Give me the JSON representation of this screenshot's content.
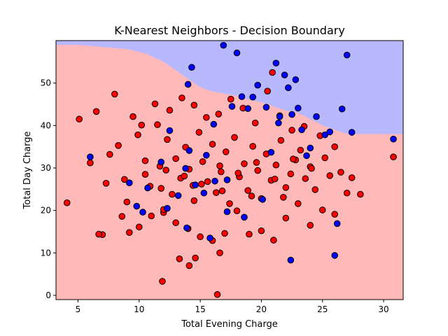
{
  "chart_data": {
    "type": "scatter",
    "title": "K-Nearest Neighbors - Decision Boundary",
    "xlabel": "Total Evening Charge",
    "ylabel": "Total Day Charge",
    "xlim": [
      3.2,
      31.6
    ],
    "ylim": [
      -1,
      60
    ],
    "xticks": [
      5,
      10,
      15,
      20,
      25,
      30
    ],
    "yticks": [
      0,
      10,
      20,
      30,
      40,
      50
    ],
    "grid": false,
    "legend": "none",
    "regions": {
      "class_0_color": "#ffb9b9",
      "class_1_color": "#b8b8ff",
      "boundary_x": [
        3.2,
        5,
        7,
        9,
        10.5,
        12,
        13,
        14,
        15,
        16,
        17,
        18,
        19,
        20,
        21,
        22,
        23,
        24,
        25,
        26,
        27,
        28,
        29,
        30,
        31.6
      ],
      "boundary_y": [
        59,
        59,
        58.5,
        58,
        57,
        55,
        53,
        51,
        49,
        48,
        47.5,
        47,
        46,
        45.5,
        44.5,
        43.5,
        43,
        41.5,
        40,
        39,
        38,
        38,
        38,
        38,
        38
      ]
    },
    "series": [
      {
        "color": "#ff0000",
        "x": [
          4.1,
          5.1,
          6.5,
          7.0,
          7.3,
          7.6,
          8.0,
          8.3,
          8.8,
          9.2,
          9.5,
          9.9,
          10.2,
          10.5,
          10.9,
          11.3,
          11.7,
          12.0,
          12.3,
          12.7,
          13.0,
          13.4,
          13.8,
          14.1,
          14.5,
          14.9,
          15.2,
          15.6,
          16.0,
          16.3,
          16.7,
          17.1,
          17.4,
          17.8,
          18.2,
          18.6,
          18.9,
          19.3,
          19.7,
          20.0,
          20.4,
          20.8,
          21.2,
          21.6,
          22.0,
          22.4,
          22.8,
          23.2,
          23.6,
          24.0,
          24.4,
          24.8,
          25.2,
          25.6,
          26.0,
          26.5,
          27.0,
          27.4,
          28.1,
          30.8,
          6.0,
          6.7,
          8.6,
          9.0,
          10.0,
          11.0,
          12.0,
          13.0,
          14.0,
          15.0,
          16.0,
          17.0,
          18.0,
          19.0,
          20.0,
          21.0,
          22.0,
          23.0,
          24.0,
          25.0,
          26.0,
          11.5,
          12.5,
          13.5,
          14.5,
          15.5,
          16.5,
          17.5,
          18.5,
          19.5,
          20.5,
          21.5,
          22.5,
          23.5,
          10.5,
          12.2,
          13.7,
          15.1,
          16.6,
          18.1,
          19.6,
          21.1,
          22.6,
          24.1,
          11.8,
          14.4,
          16.8,
          19.2,
          21.8,
          11.9,
          16.4,
          13.3,
          14.6,
          14.1,
          20.9,
          16.6
        ],
        "y": [
          21.8,
          41.5,
          43.3,
          14.3,
          26.4,
          33.2,
          47.4,
          35.3,
          27.3,
          14.8,
          42.1,
          37.8,
          40.1,
          28.5,
          25.7,
          45.1,
          30.4,
          19.5,
          36.7,
          23.8,
          32.2,
          27.6,
          34.9,
          29.7,
          22.3,
          38.4,
          31.5,
          26.8,
          35.6,
          24.2,
          29.1,
          33.8,
          21.6,
          37.2,
          27.9,
          31.0,
          24.7,
          35.1,
          29.4,
          22.8,
          33.3,
          27.1,
          30.7,
          36.5,
          25.4,
          28.6,
          31.9,
          34.2,
          27.5,
          30.3,
          24.9,
          37.6,
          32.4,
          28.2,
          35.0,
          29.0,
          24.1,
          27.7,
          23.8,
          32.6,
          31.2,
          14.4,
          18.6,
          22.0,
          16.1,
          18.7,
          20.2,
          17.1,
          15.7,
          13.8,
          12.9,
          14.6,
          19.9,
          14.4,
          15.2,
          13.0,
          18.2,
          21.6,
          16.5,
          20.1,
          19.1,
          40.2,
          43.6,
          46.5,
          44.8,
          41.9,
          42.7,
          46.2,
          44.1,
          40.6,
          48.1,
          42.3,
          38.9,
          39.8,
          31.7,
          29.5,
          28.1,
          26.2,
          30.5,
          28.8,
          31.3,
          27.4,
          32.1,
          29.9,
          25.2,
          25.9,
          24.6,
          23.4,
          23.1,
          3.3,
          0.2,
          8.6,
          8.8,
          7.0,
          52.5,
          10.0
        ]
      },
      {
        "color": "#0000ff",
        "x": [
          6.0,
          9.2,
          9.8,
          10.3,
          10.7,
          11.8,
          12.3,
          13.2,
          13.9,
          14.0,
          14.3,
          14.6,
          15.3,
          15.8,
          16.2,
          16.9,
          17.2,
          17.6,
          18.0,
          18.4,
          18.6,
          18.9,
          19.3,
          19.7,
          20.1,
          20.4,
          20.8,
          21.2,
          21.5,
          21.9,
          22.2,
          22.5,
          22.8,
          23.0,
          23.3,
          23.7,
          24.0,
          24.5,
          25.2,
          25.6,
          26.2,
          26.6,
          27.0,
          27.4,
          30.8,
          22.4,
          26.0,
          14.1,
          17.2,
          21.4,
          13.8,
          12.5,
          15.5,
          16.1
        ],
        "y": [
          32.6,
          26.5,
          21.0,
          19.6,
          25.3,
          31.4,
          20.5,
          23.5,
          15.9,
          49.7,
          53.7,
          26.0,
          24.1,
          13.5,
          26.9,
          58.9,
          19.7,
          44.5,
          57.1,
          46.8,
          18.4,
          44.0,
          46.7,
          49.5,
          22.6,
          44.3,
          33.7,
          54.7,
          42.1,
          51.9,
          48.9,
          42.6,
          50.8,
          44.1,
          39.0,
          32.9,
          34.7,
          42.1,
          37.8,
          38.5,
          16.9,
          43.9,
          56.6,
          38.4,
          36.8,
          8.3,
          9.4,
          34.1,
          27.2,
          40.6,
          29.9,
          38.8,
          33.0,
          40.3
        ]
      }
    ]
  }
}
